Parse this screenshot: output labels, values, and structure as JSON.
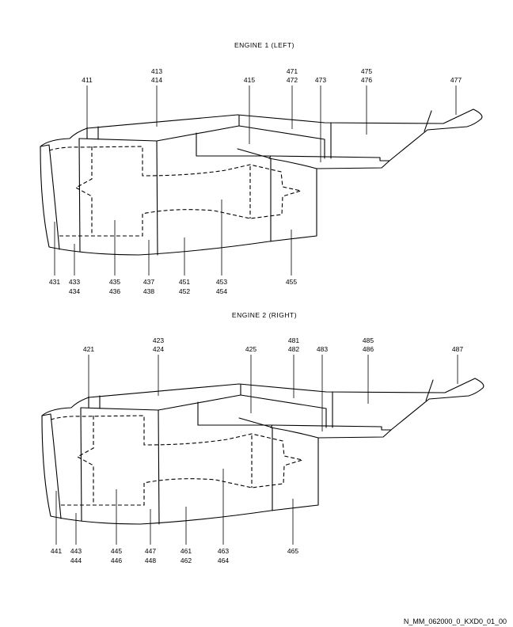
{
  "engine1": {
    "title": "ENGINE 1 (LEFT)",
    "labels_top": [
      "411",
      "413",
      "414",
      "415",
      "471",
      "472",
      "473",
      "475",
      "476",
      "477"
    ],
    "labels_bottom": [
      "431",
      "433",
      "434",
      "435",
      "436",
      "437",
      "438",
      "451",
      "452",
      "453",
      "454",
      "455"
    ]
  },
  "engine2": {
    "title": "ENGINE 2 (RIGHT)",
    "labels_top": [
      "421",
      "423",
      "424",
      "425",
      "481",
      "482",
      "483",
      "485",
      "486",
      "487"
    ],
    "labels_bottom": [
      "441",
      "443",
      "444",
      "445",
      "446",
      "447",
      "448",
      "461",
      "462",
      "463",
      "464",
      "465"
    ]
  },
  "footer": {
    "ref": "N_MM_062000_0_KXD0_01_00"
  }
}
